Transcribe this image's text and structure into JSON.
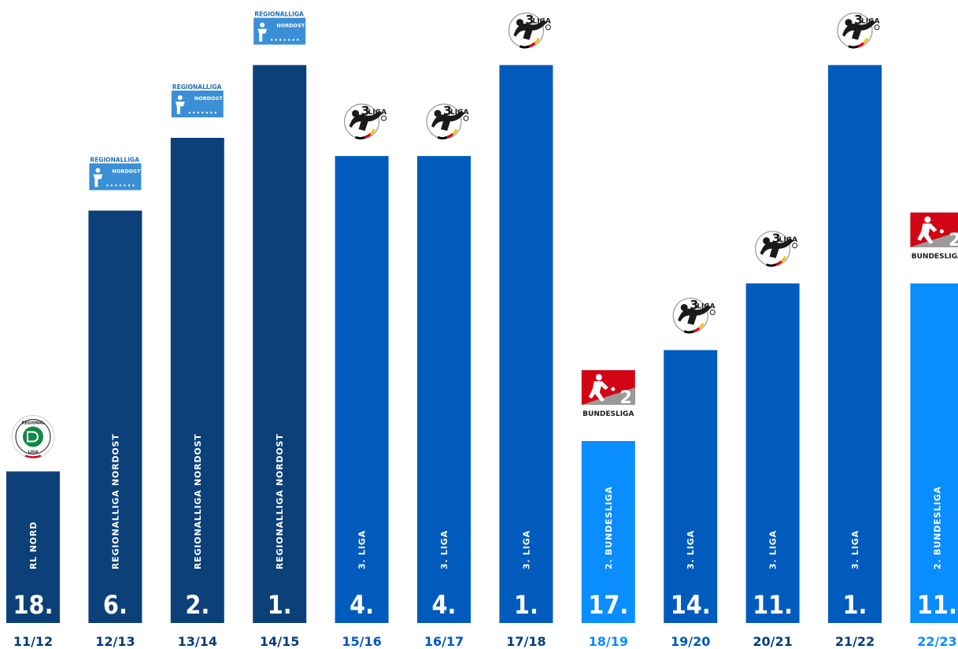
{
  "chart_data": {
    "type": "bar",
    "categories": [
      "11/12",
      "12/13",
      "13/14",
      "14/15",
      "15/16",
      "16/17",
      "17/18",
      "18/19",
      "19/20",
      "20/21",
      "21/22",
      "22/23"
    ],
    "ranks": [
      "18.",
      "6.",
      "2.",
      "1.",
      "4.",
      "4.",
      "1.",
      "17.",
      "14.",
      "11.",
      "1.",
      "11."
    ],
    "leagues": [
      "RL NORD",
      "REGIONALLIGA NORDOST",
      "REGIONALLIGA NORDOST",
      "REGIONALLIGA NORDOST",
      "3. LIGA",
      "3. LIGA",
      "3. LIGA",
      "2. BUNDESLIGA",
      "3. LIGA",
      "3. LIGA",
      "3. LIGA",
      "2. BUNDESLIGA"
    ],
    "logos": [
      "regionalliga-nord-logo",
      "regionalliga-nordost-logo",
      "regionalliga-nordost-logo",
      "regionalliga-nordost-logo",
      "3-liga-logo",
      "3-liga-logo",
      "3-liga-logo",
      "2-bundesliga-logo",
      "3-liga-logo",
      "3-liga-logo",
      "3-liga-logo",
      "2-bundesliga-logo"
    ],
    "logo_texts": {
      "regionalliga-nord-logo": [
        "REGIONAL",
        "LIGA"
      ],
      "regionalliga-nordost-logo": [
        "REGIONALLIGA",
        "NORDOST"
      ],
      "3-liga-logo": [
        "3",
        "LIGA"
      ],
      "2-bundesliga-logo": [
        "2",
        "BUNDESLIGA"
      ]
    },
    "values": [
      0.25,
      0.68,
      0.8,
      0.92,
      0.77,
      0.77,
      0.92,
      0.3,
      0.45,
      0.56,
      0.92,
      0.56
    ],
    "ylim": [
      0,
      1
    ],
    "colors": {
      "regionalliga": "#0c4079",
      "3_liga": "#015bbd",
      "2_bundesliga": "#0a8dff",
      "season_dark": "#003d79",
      "season_light": "#0a8dff",
      "bundesliga_red": "#d20515",
      "gray": "#9a9a9a",
      "dfb_green": "#138744"
    },
    "bar_colors": [
      "#0c4079",
      "#0c4079",
      "#0c4079",
      "#0c4079",
      "#015bbd",
      "#015bbd",
      "#015bbd",
      "#0a8dff",
      "#015bbd",
      "#015bbd",
      "#015bbd",
      "#0a8dff"
    ],
    "season_colors": [
      "#003d79",
      "#003d79",
      "#003d79",
      "#003d79",
      "#0058bd",
      "#0058bd",
      "#003d79",
      "#0a8dff",
      "#0058bd",
      "#003d79",
      "#003d79",
      "#0a8dff"
    ]
  }
}
